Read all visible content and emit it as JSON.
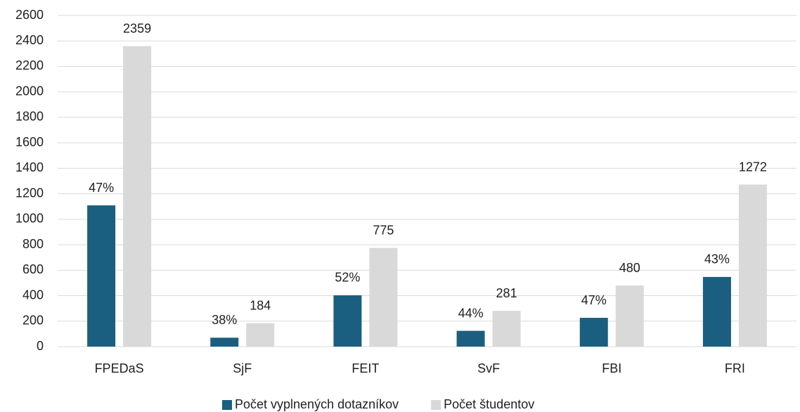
{
  "chart_data": {
    "type": "bar",
    "categories": [
      "FPEDaS",
      "SjF",
      "FEIT",
      "SvF",
      "FBI",
      "FRI"
    ],
    "series": [
      {
        "name": "Počet vyplnených dotazníkov",
        "color": "#1b5f80",
        "values": [
          1109,
          70,
          403,
          124,
          226,
          547
        ],
        "percent_labels": [
          "47%",
          "38%",
          "52%",
          "44%",
          "47%",
          "43%"
        ]
      },
      {
        "name": "Počet študentov",
        "color": "#d9d9d9",
        "values": [
          2359,
          184,
          775,
          281,
          480,
          1272
        ]
      }
    ],
    "ylim": [
      0,
      2600
    ],
    "yticks": [
      0,
      200,
      400,
      600,
      800,
      1000,
      1200,
      1400,
      1600,
      1800,
      2000,
      2200,
      2400,
      2600
    ],
    "grid": true,
    "legend": "bottom"
  }
}
